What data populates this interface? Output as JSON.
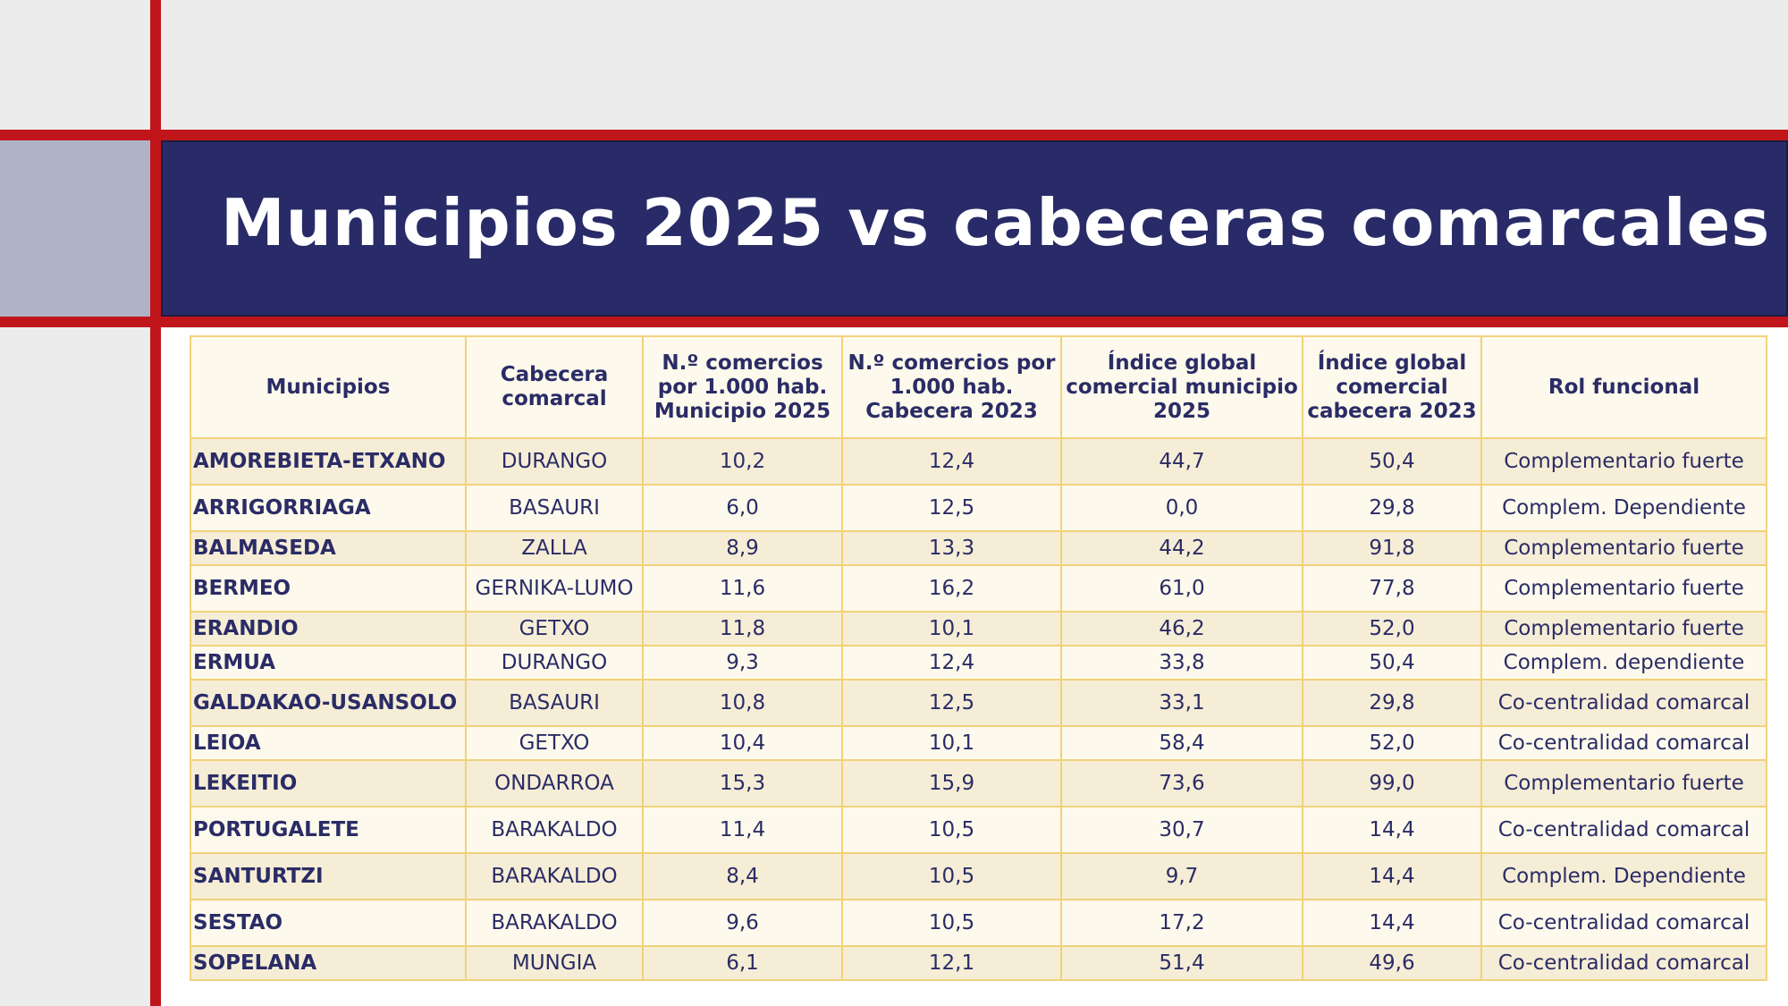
{
  "title": "Municipios 2025 vs cabeceras comarcales",
  "colors": {
    "accent_red": "#c0151a",
    "navy": "#292b68",
    "border_gold": "#f0d27a"
  },
  "table": {
    "headers": [
      "Municipios",
      "Cabecera comarcal",
      "N.º comercios por 1.000 hab. Municipio 2025",
      "N.º comercios por 1.000 hab. Cabecera 2023",
      "Índice global comercial municipio 2025",
      "Índice global comercial cabecera 2023",
      "Rol funcional"
    ],
    "rows": [
      [
        "AMOREBIETA-ETXANO",
        "DURANGO",
        "10,2",
        "12,4",
        "44,7",
        "50,4",
        "Complementario fuerte"
      ],
      [
        "ARRIGORRIAGA",
        "BASAURI",
        "6,0",
        "12,5",
        "0,0",
        "29,8",
        "Complem. Dependiente"
      ],
      [
        "BALMASEDA",
        "ZALLA",
        "8,9",
        "13,3",
        "44,2",
        "91,8",
        "Complementario fuerte"
      ],
      [
        "BERMEO",
        "GERNIKA-LUMO",
        "11,6",
        "16,2",
        "61,0",
        "77,8",
        "Complementario fuerte"
      ],
      [
        "ERANDIO",
        "GETXO",
        "11,8",
        "10,1",
        "46,2",
        "52,0",
        "Complementario fuerte"
      ],
      [
        "ERMUA",
        "DURANGO",
        "9,3",
        "12,4",
        "33,8",
        "50,4",
        "Complem. dependiente"
      ],
      [
        "GALDAKAO-USANSOLO",
        "BASAURI",
        "10,8",
        "12,5",
        "33,1",
        "29,8",
        "Co-centralidad comarcal"
      ],
      [
        "LEIOA",
        "GETXO",
        "10,4",
        "10,1",
        "58,4",
        "52,0",
        "Co-centralidad comarcal"
      ],
      [
        "LEKEITIO",
        "ONDARROA",
        "15,3",
        "15,9",
        "73,6",
        "99,0",
        "Complementario fuerte"
      ],
      [
        "PORTUGALETE",
        "BARAKALDO",
        "11,4",
        "10,5",
        "30,7",
        "14,4",
        "Co-centralidad comarcal"
      ],
      [
        "SANTURTZI",
        "BARAKALDO",
        "8,4",
        "10,5",
        "9,7",
        "14,4",
        "Complem. Dependiente"
      ],
      [
        "SESTAO",
        "BARAKALDO",
        "9,6",
        "10,5",
        "17,2",
        "14,4",
        "Co-centralidad comarcal"
      ],
      [
        "SOPELANA",
        "MUNGIA",
        "6,1",
        "12,1",
        "51,4",
        "49,6",
        "Co-centralidad comarcal"
      ]
    ]
  }
}
